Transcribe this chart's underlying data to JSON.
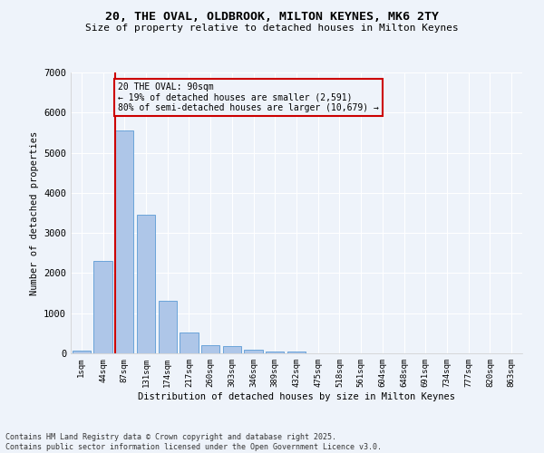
{
  "title_line1": "20, THE OVAL, OLDBROOK, MILTON KEYNES, MK6 2TY",
  "title_line2": "Size of property relative to detached houses in Milton Keynes",
  "xlabel": "Distribution of detached houses by size in Milton Keynes",
  "ylabel": "Number of detached properties",
  "categories": [
    "1sqm",
    "44sqm",
    "87sqm",
    "131sqm",
    "174sqm",
    "217sqm",
    "260sqm",
    "303sqm",
    "346sqm",
    "389sqm",
    "432sqm",
    "475sqm",
    "518sqm",
    "561sqm",
    "604sqm",
    "648sqm",
    "691sqm",
    "734sqm",
    "777sqm",
    "820sqm",
    "863sqm"
  ],
  "values": [
    70,
    2310,
    5560,
    3450,
    1320,
    530,
    210,
    185,
    95,
    55,
    45,
    0,
    0,
    0,
    0,
    0,
    0,
    0,
    0,
    0,
    0
  ],
  "bar_color": "#aec6e8",
  "bar_edge_color": "#5b9bd5",
  "vline_color": "#cc0000",
  "annotation_box_text": "20 THE OVAL: 90sqm\n← 19% of detached houses are smaller (2,591)\n80% of semi-detached houses are larger (10,679) →",
  "annotation_box_color": "#cc0000",
  "ylim": [
    0,
    7000
  ],
  "yticks": [
    0,
    1000,
    2000,
    3000,
    4000,
    5000,
    6000,
    7000
  ],
  "background_color": "#eef3fa",
  "grid_color": "#ffffff",
  "footer_line1": "Contains HM Land Registry data © Crown copyright and database right 2025.",
  "footer_line2": "Contains public sector information licensed under the Open Government Licence v3.0."
}
